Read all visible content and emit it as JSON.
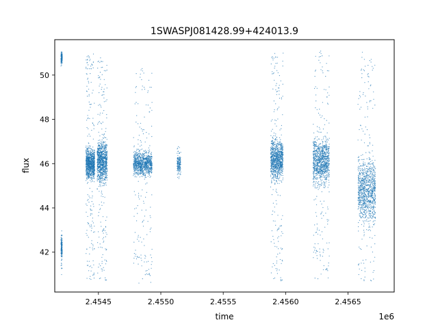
{
  "chart_data": {
    "type": "scatter",
    "title": "1SWASPJ081428.99+424013.9",
    "xlabel": "time",
    "ylabel": "flux",
    "x_offset_label": "1e6",
    "xlim": [
      2.45415,
      2.45687
    ],
    "ylim": [
      40.2,
      51.6
    ],
    "x_ticks": [
      {
        "value": 2.4545,
        "label": "2.4545"
      },
      {
        "value": 2.455,
        "label": "2.4550"
      },
      {
        "value": 2.4555,
        "label": "2.4555"
      },
      {
        "value": 2.456,
        "label": "2.4560"
      },
      {
        "value": 2.4565,
        "label": "2.4565"
      }
    ],
    "y_ticks": [
      {
        "value": 42,
        "label": "42"
      },
      {
        "value": 44,
        "label": "44"
      },
      {
        "value": 46,
        "label": "46"
      },
      {
        "value": 48,
        "label": "48"
      },
      {
        "value": 50,
        "label": "50"
      }
    ],
    "grid": false,
    "legend": "none",
    "marker_color": "#1f77b4",
    "series": [
      {
        "clusters": [
          {
            "x": [
              2.4542,
              2.45421
            ],
            "y_center": 42.2,
            "y_core": [
              41.6,
              42.9
            ],
            "y_tail": [
              40.9,
              43.1
            ],
            "dense": false
          },
          {
            "x": [
              2.4542,
              2.45421
            ],
            "y_center": 50.8,
            "y_core": [
              50.5,
              51.1
            ],
            "y_tail": [
              50.4,
              51.1
            ],
            "dense": false
          },
          {
            "x": [
              2.4544,
              2.45447
            ],
            "y_center": 46.0,
            "y_core": [
              45.2,
              46.9
            ],
            "y_tail": [
              40.7,
              51.0
            ],
            "dense": true
          },
          {
            "x": [
              2.45449,
              2.45457
            ],
            "y_center": 46.1,
            "y_core": [
              44.9,
              47.2
            ],
            "y_tail": [
              40.7,
              50.9
            ],
            "dense": true
          },
          {
            "x": [
              2.45478,
              2.45493
            ],
            "y_center": 46.0,
            "y_core": [
              45.4,
              46.8
            ],
            "y_tail": [
              40.6,
              50.4
            ],
            "dense": true
          },
          {
            "x": [
              2.45513,
              2.45516
            ],
            "y_center": 46.0,
            "y_core": [
              45.5,
              46.7
            ],
            "y_tail": [
              45.3,
              46.8
            ],
            "dense": false
          },
          {
            "x": [
              2.45588,
              2.45598
            ],
            "y_center": 46.2,
            "y_core": [
              45.2,
              47.5
            ],
            "y_tail": [
              40.7,
              51.1
            ],
            "dense": true
          },
          {
            "x": [
              2.45622,
              2.45635
            ],
            "y_center": 46.1,
            "y_core": [
              45.2,
              47.8
            ],
            "y_tail": [
              40.8,
              51.2
            ],
            "dense": true
          },
          {
            "x": [
              2.45658,
              2.45672
            ],
            "y_center": 44.8,
            "y_core": [
              42.5,
              46.2
            ],
            "y_tail": [
              40.7,
              51.1
            ],
            "dense": true
          }
        ]
      }
    ]
  }
}
